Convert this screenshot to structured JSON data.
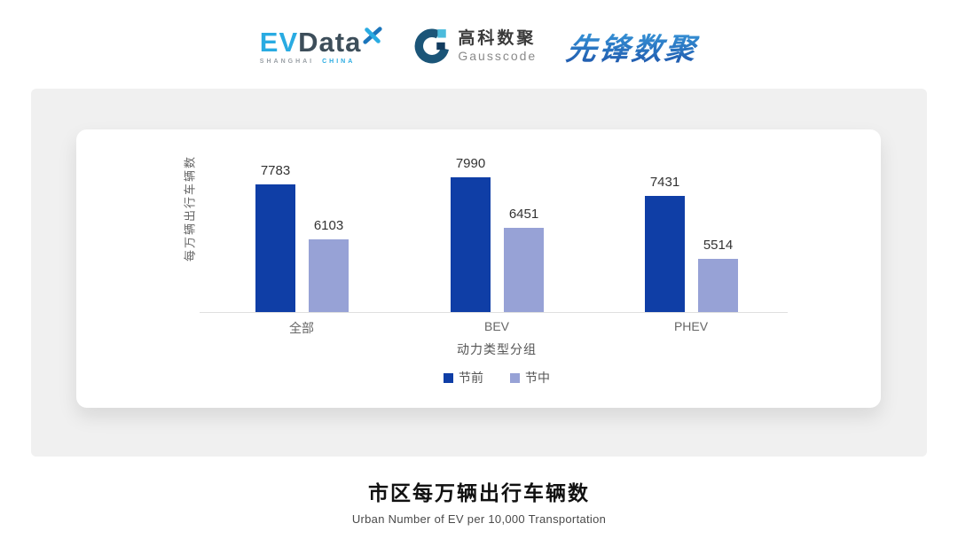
{
  "header": {
    "evdata_logo": {
      "ev": "EV",
      "data": "Data",
      "sub_left": "SHANGHAI",
      "sub_right": "CHINA"
    },
    "gausscode_logo": {
      "cn": "高科数聚",
      "en": "Gausscode"
    },
    "xianfeng_logo": {
      "text": "先锋数聚"
    }
  },
  "chart_data": {
    "type": "bar",
    "categories": [
      "全部",
      "BEV",
      "PHEV"
    ],
    "series": [
      {
        "name": "节前",
        "color": "#0F3EA6",
        "values": [
          7783,
          7990,
          7431
        ]
      },
      {
        "name": "节中",
        "color": "#97A2D6",
        "values": [
          6103,
          6451,
          5514
        ]
      }
    ],
    "title": "市区每万辆出行车辆数",
    "xlabel": "动力类型分组",
    "ylabel": "每万辆出行车辆数",
    "ylim": [
      3900,
      8500
    ],
    "grid": false,
    "data_labels": true,
    "legend_position": "bottom"
  },
  "footer": {
    "title": "市区每万辆出行车辆数",
    "subtitle": "Urban Number of EV per 10,000 Transportation"
  },
  "colors": {
    "band_bg": "#F0F0F0",
    "card_bg": "#FFFFFF",
    "axis_line": "#E0E0E0",
    "series_dark": "#0F3EA6",
    "series_light": "#97A2D6",
    "brand_cyan": "#29ABE2",
    "brand_navy": "#1B5578"
  }
}
